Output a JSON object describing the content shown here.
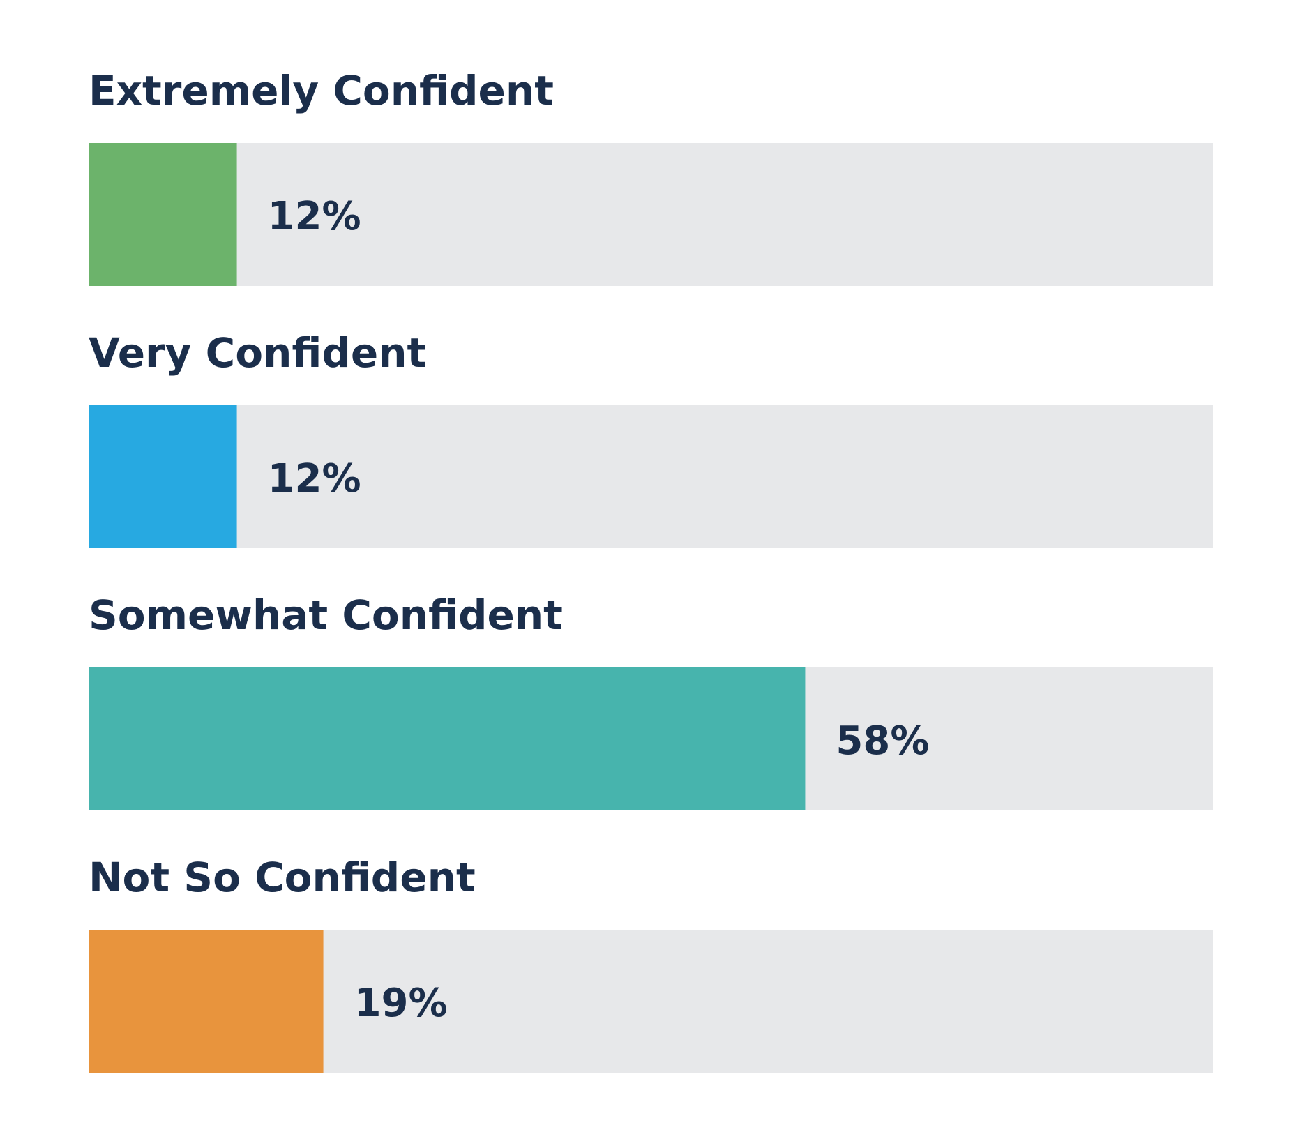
{
  "chart_data": {
    "type": "bar",
    "orientation": "horizontal",
    "categories": [
      "Extremely Confident",
      "Very Confident",
      "Somewhat Confident",
      "Not So Confident"
    ],
    "values": [
      12,
      12,
      58,
      19
    ],
    "value_labels": [
      "12%",
      "12%",
      "58%",
      "19%"
    ],
    "unit": "%",
    "xlim": [
      0,
      91
    ],
    "colors": [
      "#6cb36b",
      "#27a9e1",
      "#47b4ad",
      "#e8943d"
    ],
    "track_color": "#e7e8ea",
    "label_color": "#1b2e4b",
    "grid": false,
    "legend": "none",
    "title": "",
    "xlabel": "",
    "ylabel": ""
  }
}
